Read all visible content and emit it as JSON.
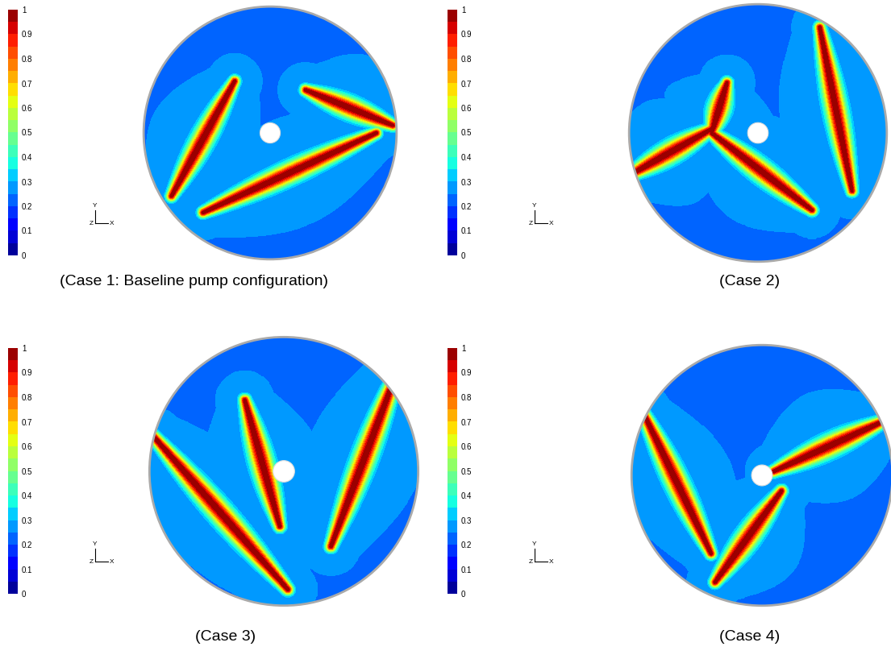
{
  "chart_data": [
    {
      "type": "contour",
      "title": "(Case 1: Baseline pump configuration)",
      "background": 0.25,
      "peak": 1,
      "wakes": [
        [
          -0.78,
          -0.5,
          -0.28,
          0.41
        ],
        [
          0.28,
          0.34,
          0.97,
          0.06
        ],
        [
          -0.53,
          -0.63,
          0.84,
          0.0
        ]
      ],
      "clim": [
        0,
        1
      ],
      "cticks": [
        0,
        0.1,
        0.2,
        0.3,
        0.4,
        0.5,
        0.6,
        0.7,
        0.8,
        0.9,
        1
      ],
      "axis_labels": {
        "x": "X",
        "y": "Y",
        "z": "Z"
      }
    },
    {
      "type": "contour",
      "title": "(Case 2)",
      "background": 0.25,
      "peak": 1,
      "wakes": [
        [
          0.48,
          0.82,
          0.73,
          -0.45
        ],
        [
          -1.0,
          -0.33,
          -0.36,
          0.03
        ],
        [
          -0.36,
          0.0,
          0.42,
          -0.6
        ],
        [
          -0.36,
          0.0,
          -0.24,
          0.39
        ]
      ],
      "clim": [
        0,
        1
      ],
      "cticks": [
        0,
        0.1,
        0.2,
        0.3,
        0.4,
        0.5,
        0.6,
        0.7,
        0.8,
        0.9,
        1
      ],
      "axis_labels": {
        "x": "X",
        "y": "Y",
        "z": "Z"
      }
    },
    {
      "type": "contour",
      "title": "(Case 3)",
      "background": 0.25,
      "peak": 1,
      "wakes": [
        [
          -0.97,
          0.26,
          0.03,
          -0.88
        ],
        [
          -0.29,
          0.53,
          -0.03,
          -0.41
        ],
        [
          0.85,
          0.76,
          0.35,
          -0.56
        ]
      ],
      "clim": [
        0,
        1
      ],
      "cticks": [
        0,
        0.1,
        0.2,
        0.3,
        0.4,
        0.5,
        0.6,
        0.7,
        0.8,
        0.9,
        1
      ],
      "axis_labels": {
        "x": "X",
        "y": "Y",
        "z": "Z"
      }
    },
    {
      "type": "contour",
      "title": "(Case 4)",
      "background": 0.25,
      "peak": 1,
      "wakes": [
        [
          -0.91,
          0.48,
          -0.39,
          -0.6
        ],
        [
          0.09,
          0.03,
          0.94,
          0.42
        ],
        [
          -0.36,
          -0.82,
          0.15,
          -0.12
        ]
      ],
      "clim": [
        0,
        1
      ],
      "cticks": [
        0,
        0.1,
        0.2,
        0.3,
        0.4,
        0.5,
        0.6,
        0.7,
        0.8,
        0.9,
        1
      ],
      "axis_labels": {
        "x": "X",
        "y": "Y",
        "z": "Z"
      }
    }
  ]
}
